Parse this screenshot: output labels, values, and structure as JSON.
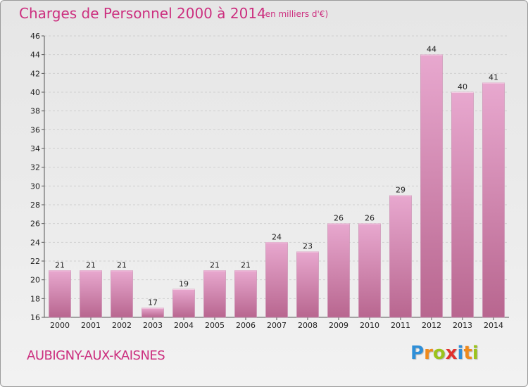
{
  "header": {
    "title": "Charges de Personnel 2000 à 2014",
    "unit": "(en milliers d'€)"
  },
  "footer": {
    "commune": "AUBIGNY-AUX-KAISNES",
    "logo_letters": [
      "P",
      "r",
      "o",
      "x",
      "i",
      "t",
      "i"
    ],
    "logo_colors": [
      "#2f8fd8",
      "#f08a1c",
      "#9bc31c",
      "#e0322e",
      "#2f8fd8",
      "#f08a1c",
      "#9bc31c"
    ]
  },
  "colors": {
    "title": "#cc2f7f",
    "bar_light": "#e8a8cf",
    "bar_dark": "#b8668f",
    "grid": "#cfcfcf"
  },
  "chart_data": {
    "type": "bar",
    "title": "Charges de Personnel 2000 à 2014",
    "subtitle": "(en milliers d'€)",
    "categories": [
      "2000",
      "2001",
      "2002",
      "2003",
      "2004",
      "2005",
      "2006",
      "2007",
      "2008",
      "2009",
      "2010",
      "2011",
      "2012",
      "2013",
      "2014"
    ],
    "values": [
      21,
      21,
      21,
      17,
      19,
      21,
      21,
      24,
      23,
      26,
      26,
      29,
      44,
      40,
      41
    ],
    "data_labels": [
      "21",
      "21",
      "21",
      "17",
      "19",
      "21",
      "21",
      "24",
      "23",
      "26",
      "26",
      "29",
      "44",
      "40",
      "41"
    ],
    "ylim": [
      16,
      46
    ],
    "yticks": [
      16,
      18,
      20,
      22,
      24,
      26,
      28,
      30,
      32,
      34,
      36,
      38,
      40,
      42,
      44,
      46
    ],
    "grid": true,
    "xlabel": "",
    "ylabel": ""
  }
}
